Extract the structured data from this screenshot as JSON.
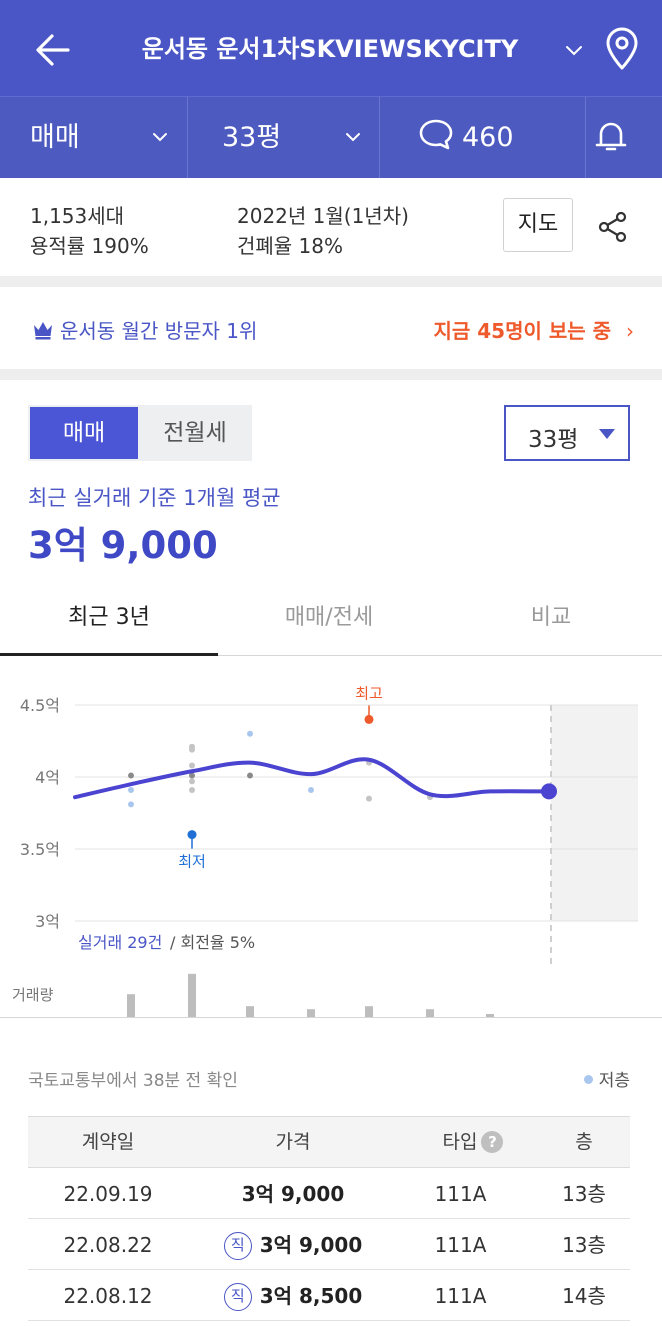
{
  "header": {
    "title": "운서동 운서1차SKVIEWSKYCITY",
    "back_icon": "arrow-left-icon",
    "dropdown_icon": "chevron-down-icon",
    "location_icon": "map-pin-icon",
    "color": "#4a56c6"
  },
  "subbar": {
    "trade_type": "매매",
    "size": "33평",
    "comment_count": "460",
    "comment_icon": "speech-bubble-icon",
    "alarm_icon": "bell-icon"
  },
  "info": {
    "households": "1,153세대",
    "floor_area_ratio": "용적률 190%",
    "built": "2022년 1월(1년차)",
    "coverage_ratio": "건폐율 18%",
    "map_button": "지도",
    "share_icon": "share-icon"
  },
  "rank": {
    "crown_icon": "crown-icon",
    "text": "운서동 월간 방문자 1위",
    "viewers": "지금 45명이 보는 중",
    "chevron": "›"
  },
  "price": {
    "segments": [
      "매매",
      "전월세"
    ],
    "selected_size": "33평",
    "avg_label": "최근 실거래 기준 1개월 평균",
    "avg_value": "3억 9,000"
  },
  "tabs": [
    "최근 3년",
    "매매/전세",
    "비교"
  ],
  "chart_data": {
    "type": "line",
    "y_ticks": [
      "4.5억",
      "4억",
      "3.5억",
      "3억"
    ],
    "ylim": [
      3.0,
      4.5
    ],
    "y_unit": "억",
    "trend": [
      3.86,
      3.95,
      4.04,
      4.1,
      4.02,
      4.12,
      3.88,
      3.9,
      3.9
    ],
    "trend_x": [
      0,
      1,
      2,
      3,
      4,
      5,
      6,
      7,
      8
    ],
    "trades": [
      {
        "x": 1,
        "y": 4.01,
        "kind": "normal"
      },
      {
        "x": 1,
        "y": 3.91,
        "kind": "low-floor"
      },
      {
        "x": 1,
        "y": 3.81,
        "kind": "low-floor"
      },
      {
        "x": 2,
        "y": 4.21,
        "kind": "light"
      },
      {
        "x": 2,
        "y": 4.19,
        "kind": "light"
      },
      {
        "x": 2,
        "y": 4.08,
        "kind": "light"
      },
      {
        "x": 2,
        "y": 4.01,
        "kind": "normal"
      },
      {
        "x": 2,
        "y": 3.97,
        "kind": "light"
      },
      {
        "x": 2,
        "y": 3.91,
        "kind": "light"
      },
      {
        "x": 3,
        "y": 4.3,
        "kind": "low-floor"
      },
      {
        "x": 3,
        "y": 4.01,
        "kind": "normal"
      },
      {
        "x": 4,
        "y": 3.91,
        "kind": "low-floor"
      },
      {
        "x": 5,
        "y": 4.1,
        "kind": "light"
      },
      {
        "x": 5,
        "y": 3.85,
        "kind": "light"
      },
      {
        "x": 6,
        "y": 3.86,
        "kind": "light"
      }
    ],
    "max_point": {
      "x": 5,
      "y": 4.4,
      "label": "최고"
    },
    "min_point": {
      "x": 2,
      "y": 3.6,
      "label": "최저"
    },
    "latest_point": {
      "x": 8,
      "y": 3.9
    },
    "volume": [
      0.38,
      0.72,
      0.18,
      0.13,
      0.18,
      0.13,
      0.05
    ],
    "volume_label": "거래량",
    "trade_count": "실거래 29건",
    "turnover": "/ 회전율 5%",
    "colors": {
      "line": "#4a44d0",
      "max": "#ee5a2b",
      "min": "#1f6fd6",
      "low_floor": "#a9c6ee"
    }
  },
  "table": {
    "source": "국토교통부에서 38분 전 확인",
    "legend_low_floor": "저층",
    "headers": [
      "계약일",
      "가격",
      "타입",
      "층"
    ],
    "help_glyph": "?",
    "direct_badge": "직",
    "rows": [
      {
        "date": "22.09.19",
        "price": "3억 9,000",
        "direct": false,
        "type": "111A",
        "floor": "13층"
      },
      {
        "date": "22.08.22",
        "price": "3억 9,000",
        "direct": true,
        "type": "111A",
        "floor": "13층"
      },
      {
        "date": "22.08.12",
        "price": "3억 8,500",
        "direct": true,
        "type": "111A",
        "floor": "14층"
      }
    ]
  }
}
